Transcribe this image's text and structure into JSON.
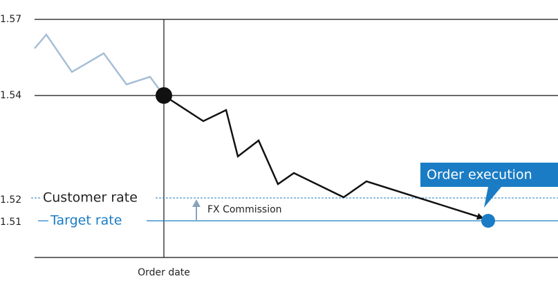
{
  "axis": {
    "ticks": [
      "1.57",
      "1.54",
      "1.52",
      "1.51"
    ],
    "x_label": "Order date"
  },
  "levels": {
    "customer_rate": "Customer rate",
    "target_rate": "Target rate",
    "commission": "FX Commission"
  },
  "callout": "Order execution"
}
